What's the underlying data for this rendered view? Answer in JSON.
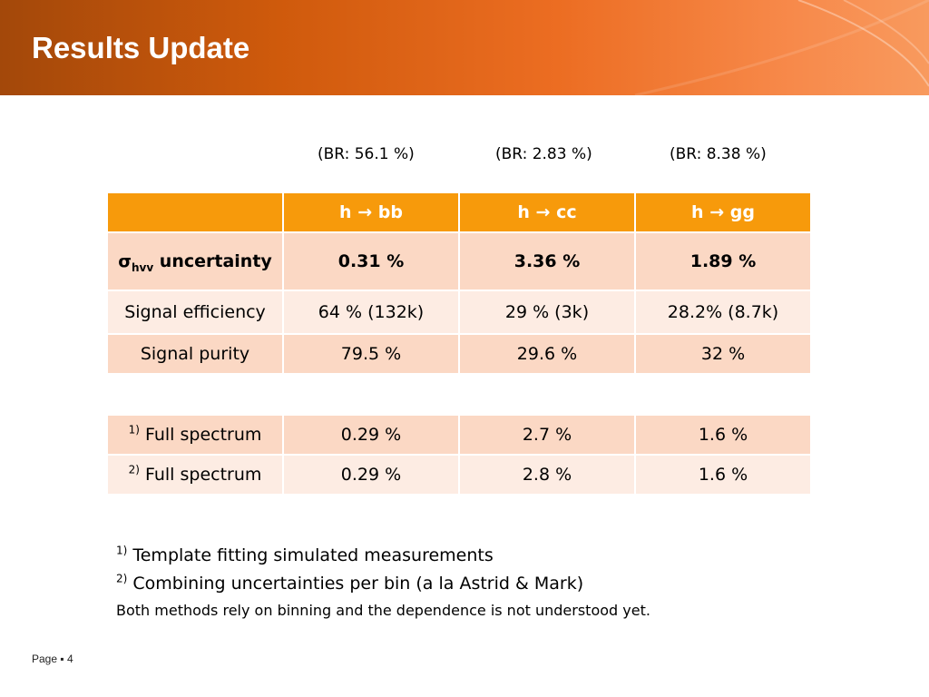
{
  "slide": {
    "title": "Results Update",
    "branching_ratios": [
      "(BR:  56.1 %)",
      "(BR:  2.83 %)",
      "(BR:  8.38 %)"
    ],
    "main_table": {
      "headers": [
        "",
        "h → bb",
        "h → cc",
        "h → gg"
      ],
      "row_sigma": {
        "label_symbol": "σ",
        "label_subscript": "hvv",
        "label_text": " uncertainty",
        "values": [
          "0.31 %",
          "3.36 %",
          "1.89 %"
        ]
      },
      "row_efficiency": {
        "label": "Signal efficiency",
        "values": [
          "64 % (132k)",
          "29 % (3k)",
          "28.2% (8.7k)"
        ]
      },
      "row_purity": {
        "label": "Signal purity",
        "values": [
          "79.5 %",
          "29.6 %",
          "32 %"
        ]
      }
    },
    "spectrum_table": {
      "rows": [
        {
          "marker": "1)",
          "label": " Full spectrum",
          "values": [
            "0.29 %",
            "2.7 %",
            "1.6 %"
          ]
        },
        {
          "marker": "2)",
          "label": " Full spectrum",
          "values": [
            "0.29 %",
            "2.8 %",
            "1.6 %"
          ]
        }
      ]
    },
    "notes": {
      "note1_marker": "1)",
      "note1_text": " Template fitting simulated measurements",
      "note2_marker": "2)",
      "note2_text": " Combining uncertainties per bin (a la Astrid & Mark)",
      "note3_text": "Both methods rely on binning and the dependence is not understood  yet."
    },
    "footer": "Page ▪ 4"
  }
}
